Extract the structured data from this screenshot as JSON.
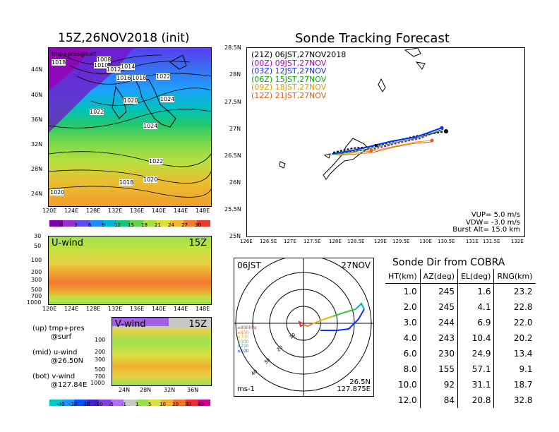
{
  "init_map": {
    "title": "15Z,26NOV2018 (init)",
    "overlay_label": "tmp+pres@surf",
    "lat_labels": [
      "44N",
      "40N",
      "36N",
      "32N",
      "28N",
      "24N"
    ],
    "lon_labels": [
      "120E",
      "124E",
      "128E",
      "132E",
      "136E",
      "140E",
      "144E",
      "148E"
    ],
    "isobars": [
      "1018",
      "1008",
      "1010",
      "1012",
      "1014",
      "1016",
      "1018",
      "1022",
      "1020",
      "1024",
      "1022",
      "1024",
      "1022",
      "1018",
      "1020",
      "1020"
    ],
    "colorbar_labels": [
      "0",
      "3",
      "6",
      "9",
      "12",
      "15",
      "18",
      "21",
      "24",
      "27",
      "30"
    ],
    "colorbar_colors": [
      "#7a00a8",
      "#9a2bd6",
      "#5a4cf0",
      "#1f88ff",
      "#00b4d8",
      "#18c47a",
      "#62d445",
      "#a8e03a",
      "#dce030",
      "#f3b82c",
      "#f27d2b",
      "#ec3a2b"
    ]
  },
  "u_wind": {
    "title": "U-wind",
    "time": "15Z",
    "pressure_labels": [
      "30",
      "50",
      "100",
      "200",
      "300",
      "500",
      "700",
      "1000"
    ],
    "lon_labels": [
      "120E",
      "124E",
      "128E",
      "132E",
      "136E",
      "140E",
      "144E",
      "148E"
    ]
  },
  "v_wind": {
    "title": "V-wind",
    "time": "15Z",
    "pressure_labels": [
      "100",
      "200",
      "300",
      "500",
      "700",
      "1000"
    ],
    "lat_labels": [
      "24N",
      "28N",
      "32N",
      "36N"
    ]
  },
  "legend_notes": [
    {
      "line1": "(up) tmp+pres",
      "line2": "@surf"
    },
    {
      "line1": "(mid) u-wind",
      "line2": "@26.50N"
    },
    {
      "line1": "(bot) v-wind",
      "line2": "@127.84E"
    }
  ],
  "wind_colorbar": {
    "labels": [
      "-40",
      "-30",
      "-20",
      "-10",
      "-5",
      "-1",
      "1",
      "5",
      "10",
      "20",
      "30",
      "40"
    ],
    "colors": [
      "#00c8c8",
      "#1e90ff",
      "#0050ff",
      "#4020d0",
      "#8040e0",
      "#b070f0",
      "#c8c8c8",
      "#98e050",
      "#d8e040",
      "#f0b030",
      "#f07030",
      "#e83030",
      "#d00090"
    ]
  },
  "tracking": {
    "title": "Sonde Tracking Forecast",
    "times": [
      {
        "utc": "(21Z)",
        "jst": "06JST,27NOV2018",
        "color": "#000000"
      },
      {
        "utc": "(00Z)",
        "jst": "09JST,27NOV",
        "color": "#b000c0"
      },
      {
        "utc": "(03Z)",
        "jst": "12JST,27NOV",
        "color": "#1030ff"
      },
      {
        "utc": "(06Z)",
        "jst": "15JST,27NOV",
        "color": "#00b000"
      },
      {
        "utc": "(09Z)",
        "jst": "18JST,27NOV",
        "color": "#e0a000"
      },
      {
        "utc": "(12Z)",
        "jst": "21JST,27NOV",
        "color": "#e06010"
      }
    ],
    "lat_labels": [
      "28.5N",
      "28N",
      "27.5N",
      "27N",
      "26.5N",
      "26N",
      "25.5N",
      "25N"
    ],
    "lon_labels": [
      "126E",
      "126.5E",
      "127E",
      "127.5E",
      "128E",
      "128.5E",
      "129E",
      "129.5E",
      "130E",
      "130.5E",
      "131E",
      "131.5E",
      "132E"
    ],
    "vup": "VUP= 5.0 m/s",
    "vdw": "VDW= -3.0 m/s",
    "burst": "Burst Alt= 15.0 km"
  },
  "polar": {
    "time": "06JST",
    "date": "27NOV",
    "ring_labels": [
      "10",
      "20",
      "30",
      "40"
    ],
    "levels": [
      {
        "label": "≥850hPa",
        "color": "#e83030"
      },
      {
        "label": "≤850",
        "color": "#f08030"
      },
      {
        "label": "≤700",
        "color": "#e0c000"
      },
      {
        "label": "≤500",
        "color": "#40c040"
      },
      {
        "label": "≤250",
        "color": "#00b0d0"
      },
      {
        "label": "≤100",
        "color": "#1030ff"
      }
    ],
    "units": "ms-1",
    "lat": "26.5N",
    "lon": "127.875E"
  },
  "sonde_dir": {
    "title": "Sonde Dir from COBRA",
    "headers": [
      "HT(km)",
      "AZ(deg)",
      "EL(deg)",
      "RNG(km)"
    ],
    "rows": [
      [
        "1.0",
        "245",
        "1.6",
        "23.2"
      ],
      [
        "2.0",
        "245",
        "4.1",
        "22.8"
      ],
      [
        "3.0",
        "244",
        "6.9",
        "22.0"
      ],
      [
        "4.0",
        "243",
        "10.4",
        "20.2"
      ],
      [
        "6.0",
        "230",
        "24.9",
        "13.4"
      ],
      [
        "8.0",
        "155",
        "57.1",
        "9.1"
      ],
      [
        "10.0",
        "92",
        "31.1",
        "18.7"
      ],
      [
        "12.0",
        "84",
        "20.8",
        "32.8"
      ]
    ]
  }
}
